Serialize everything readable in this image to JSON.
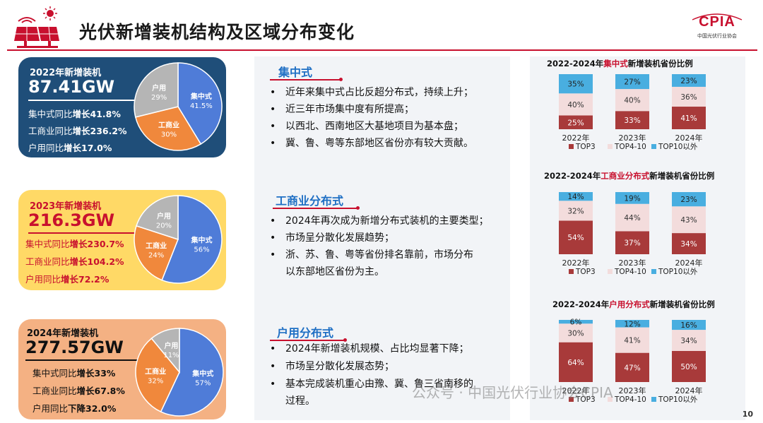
{
  "header": {
    "title": "光伏新增装机结构及区域分布变化",
    "logo_text": "CPIA",
    "logo_sub": "中国光伏行业协会",
    "page_number": "10",
    "watermark": "公众号 · 中国光伏行业协会CPIA"
  },
  "colors": {
    "accent_red": "#c8102e",
    "centralized": "#4f7cd8",
    "commercial": "#f0883c",
    "household": "#b5b5b5",
    "top3": "#a83a3a",
    "top4_10": "#f3dcdc",
    "top10_plus": "#49aee0"
  },
  "summaries": [
    {
      "year_label": "2022年新增装机",
      "total": "87.41GW",
      "stats": [
        {
          "prefix": "集中式同比",
          "bold": "增长41.8%"
        },
        {
          "prefix": "工商业同比",
          "bold": "增长236.2%"
        },
        {
          "prefix": "户用同比",
          "bold": "增长17.0%"
        }
      ],
      "pie": [
        {
          "name": "集中式",
          "pct": "41.5%",
          "value": 41.5
        },
        {
          "name": "工商业",
          "pct": "30%",
          "value": 30
        },
        {
          "name": "户用",
          "pct": "29%",
          "value": 29
        }
      ]
    },
    {
      "year_label": "2023年新增装机",
      "total": "216.3GW",
      "stats": [
        {
          "prefix": "集中式同比",
          "bold": "增长230.7%"
        },
        {
          "prefix": "工商业同比",
          "bold": "增长104.2%"
        },
        {
          "prefix": "户用同比",
          "bold": "增长72.2%"
        }
      ],
      "pie": [
        {
          "name": "集中式",
          "pct": "56%",
          "value": 56
        },
        {
          "name": "工商业",
          "pct": "24%",
          "value": 24
        },
        {
          "name": "户用",
          "pct": "20%",
          "value": 20
        }
      ]
    },
    {
      "year_label": "2024年新增装机",
      "total": "277.57GW",
      "stats": [
        {
          "prefix": "集中式同比",
          "bold": "增长33%"
        },
        {
          "prefix": "工商业同比",
          "bold": "增长67.8%"
        },
        {
          "prefix": "户用同比",
          "bold": "下降32.0%"
        }
      ],
      "pie": [
        {
          "name": "集中式",
          "pct": "57%",
          "value": 57
        },
        {
          "name": "工商业",
          "pct": "32%",
          "value": 32
        },
        {
          "name": "户用",
          "pct": "11%",
          "value": 11
        }
      ]
    }
  ],
  "sections": [
    {
      "heading": "集中式",
      "bullets": [
        "近年来集中式占比反超分布式，持续上升；",
        "近三年市场集中度有所提高；",
        "以西北、西南地区大基地项目为基本盘；",
        "冀、鲁、粤等东部地区省份亦有较大贡献。"
      ]
    },
    {
      "heading": "工商业分布式",
      "bullets": [
        "2024年再次成为新增分布式装机的主要类型；",
        "市场呈分散化发展趋势；",
        "浙、苏、鲁、粤等省份排名靠前，市场分布",
        "以东部地区省份为主。"
      ]
    },
    {
      "heading": "户用分布式",
      "bullets": [
        "2024年新增装机规模、占比均显著下降；",
        "市场呈分散化发展态势；",
        "基本完成装机重心由豫、冀、鲁三省南移的",
        "过程。"
      ]
    }
  ],
  "bullet_marker": "•",
  "chart_data": [
    {
      "type": "bar",
      "stacked": true,
      "title_prefix": "2022-2024年",
      "title_highlight": "集中式",
      "title_suffix": "新增装机省份比例",
      "categories": [
        "2022年",
        "2023年",
        "2024年"
      ],
      "series": [
        {
          "name": "TOP3",
          "values": [
            25,
            33,
            41
          ],
          "labels": [
            "25%",
            "33%",
            "41%"
          ]
        },
        {
          "name": "TOP4-10",
          "values": [
            40,
            40,
            36
          ],
          "labels": [
            "40%",
            "40%",
            "36%"
          ]
        },
        {
          "name": "TOP10以外",
          "values": [
            35,
            27,
            23
          ],
          "labels": [
            "35%",
            "27%",
            "23%"
          ]
        }
      ],
      "legend_position": "bottom"
    },
    {
      "type": "bar",
      "stacked": true,
      "title_prefix": "2022-2024年",
      "title_highlight": "工商业分布式",
      "title_suffix": "新增装机省份比例",
      "categories": [
        "2022年",
        "2023年",
        "2024年"
      ],
      "series": [
        {
          "name": "TOP3",
          "values": [
            54,
            37,
            34
          ],
          "labels": [
            "54%",
            "37%",
            "34%"
          ]
        },
        {
          "name": "TOP4-10",
          "values": [
            32,
            44,
            43
          ],
          "labels": [
            "32%",
            "44%",
            "43%"
          ]
        },
        {
          "name": "TOP10以外",
          "values": [
            14,
            19,
            23
          ],
          "labels": [
            "14%",
            "19%",
            "23%"
          ]
        }
      ],
      "legend_position": "bottom"
    },
    {
      "type": "bar",
      "stacked": true,
      "title_prefix": "2022-2024年",
      "title_highlight": "户用分布式",
      "title_suffix": "新增装机省份比例",
      "categories": [
        "2022年",
        "2023年",
        "2024年"
      ],
      "series": [
        {
          "name": "TOP3",
          "values": [
            64,
            47,
            50
          ],
          "labels": [
            "64%",
            "47%",
            "50%"
          ]
        },
        {
          "name": "TOP4-10",
          "values": [
            30,
            41,
            34
          ],
          "labels": [
            "30%",
            "41%",
            "34%"
          ]
        },
        {
          "name": "TOP10以外",
          "values": [
            6,
            12,
            16
          ],
          "labels": [
            "6%",
            "12%",
            "16%"
          ]
        }
      ],
      "legend_position": "bottom"
    }
  ]
}
